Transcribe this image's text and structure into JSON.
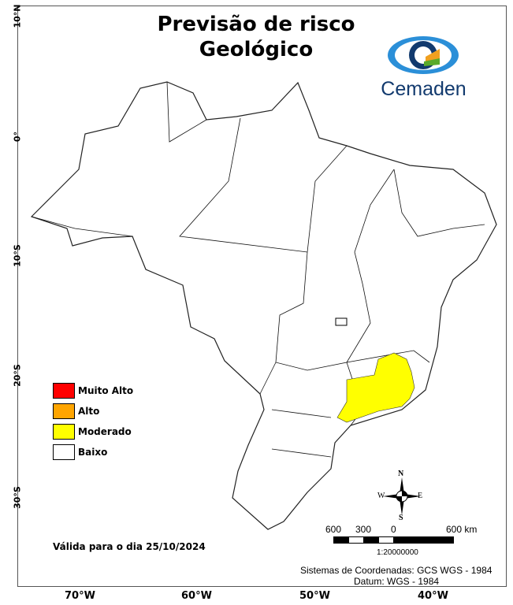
{
  "title_line1": "Previsão de risco",
  "title_line2": "Geológico",
  "logo_text": "Cemaden",
  "latitude_labels": [
    "10°N",
    "0°",
    "10°S",
    "20°S",
    "30°S"
  ],
  "longitude_labels": [
    "70°W",
    "60°W",
    "50°W",
    "40°W"
  ],
  "legend": [
    {
      "label": "Muito Alto",
      "color": "#ff0000"
    },
    {
      "label": "Alto",
      "color": "#ffa500"
    },
    {
      "label": "Moderado",
      "color": "#ffff00"
    },
    {
      "label": "Baixo",
      "color": "#ffffff"
    }
  ],
  "valid_text": "Válida para o dia 25/10/2024",
  "compass": {
    "n": "N",
    "s": "S",
    "e": "E",
    "w": "W"
  },
  "scale_bar": {
    "labels": [
      "600",
      "300",
      "0",
      "600 km"
    ],
    "ratio": "1:20000000"
  },
  "crs_text": "Sistemas de Coordenadas: GCS WGS - 1984",
  "datum_text": "Datum: WGS - 1984"
}
